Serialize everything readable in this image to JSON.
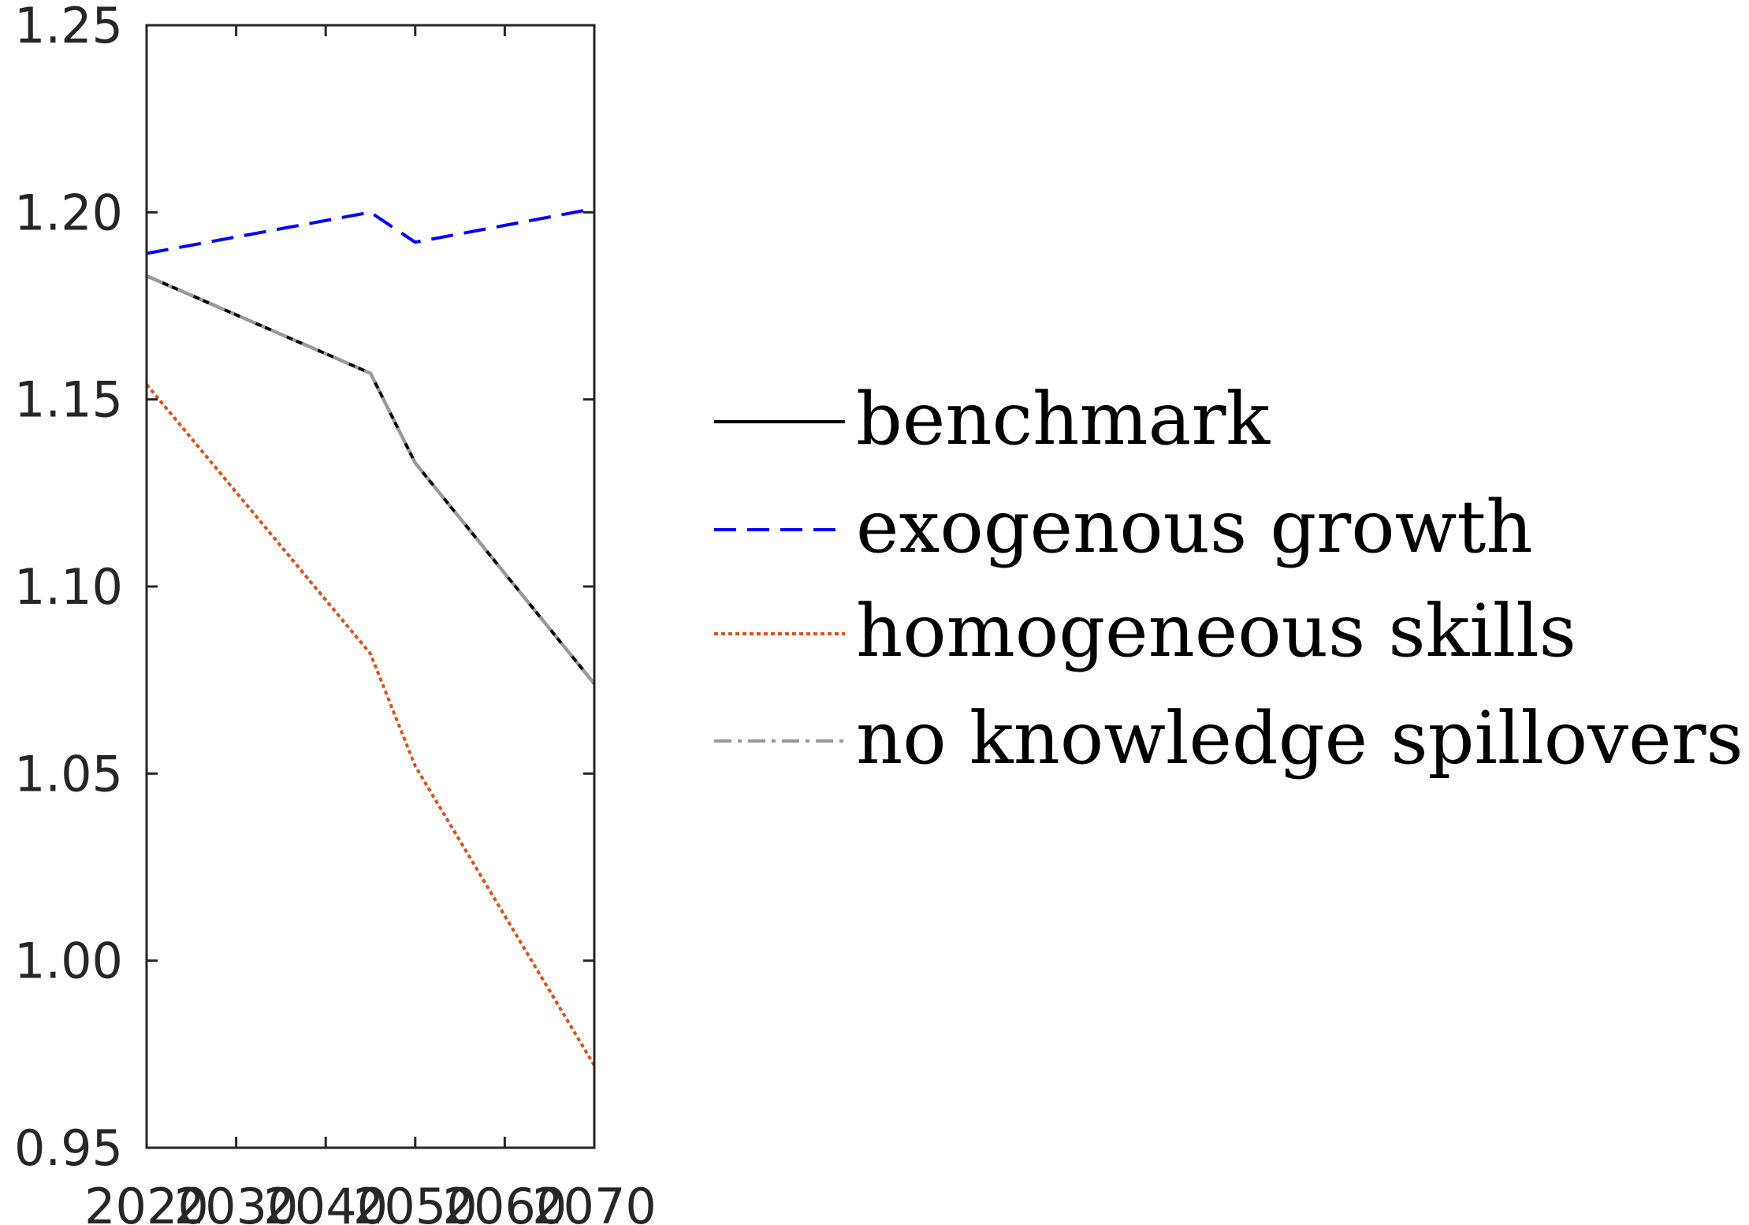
{
  "chart_data": {
    "type": "line",
    "title": "",
    "xlabel": "",
    "ylabel": "",
    "xlim": [
      2020,
      2070
    ],
    "ylim": [
      0.95,
      1.25
    ],
    "x_ticks": [
      2020,
      2030,
      2040,
      2050,
      2060,
      2070
    ],
    "x_tick_labels": [
      "2020",
      "2030",
      "2040",
      "2050",
      "2060",
      "2070"
    ],
    "y_ticks": [
      0.95,
      1.0,
      1.05,
      1.1,
      1.15,
      1.2,
      1.25
    ],
    "y_tick_labels": [
      "0.95",
      "1.00",
      "1.05",
      "1.10",
      "1.15",
      "1.20",
      "1.25"
    ],
    "grid": false,
    "legend_position": "right, outside plot",
    "series": [
      {
        "name": "benchmark",
        "color": "#000000",
        "style": "solid",
        "x": [
          2020,
          2045,
          2050,
          2070
        ],
        "y": [
          1.183,
          1.157,
          1.133,
          1.074
        ]
      },
      {
        "name": "exogenous growth",
        "color": "#0000ff",
        "style": "dashed",
        "x": [
          2020,
          2045,
          2050,
          2070
        ],
        "y": [
          1.189,
          1.2,
          1.192,
          1.201
        ]
      },
      {
        "name": "homogeneous skills",
        "color": "#d95319",
        "style": "dotted",
        "x": [
          2020,
          2045,
          2050,
          2070
        ],
        "y": [
          1.154,
          1.082,
          1.052,
          0.972
        ]
      },
      {
        "name": "no knowledge spillovers",
        "color": "#999999",
        "style": "dashdot",
        "x": [
          2020,
          2045,
          2050,
          2070
        ],
        "y": [
          1.183,
          1.157,
          1.133,
          1.074
        ]
      }
    ]
  }
}
